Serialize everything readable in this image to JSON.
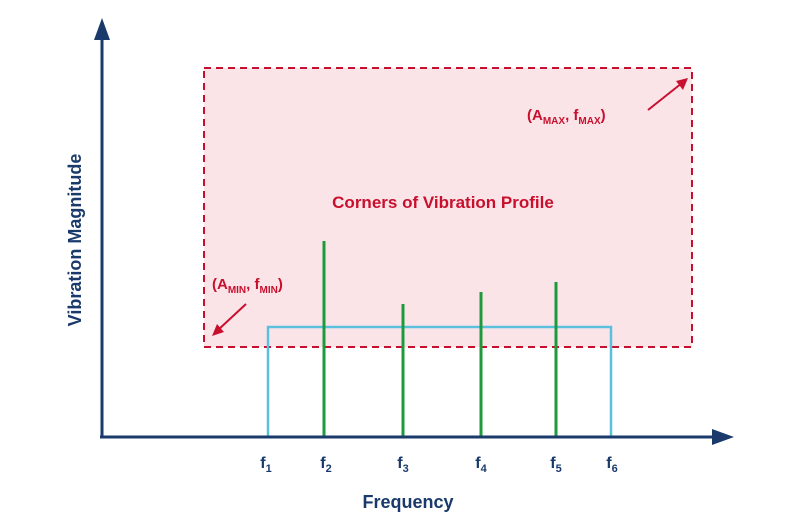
{
  "axes": {
    "x_title": "Frequency",
    "y_title": "Vibration Magnitude"
  },
  "profile_box": {
    "label": "Corners of Vibration Profile"
  },
  "corners": {
    "max": {
      "open": "(A",
      "a_sub": "MAX",
      "mid": ", f",
      "f_sub": "MAX",
      "close": ")"
    },
    "min": {
      "open": "(A",
      "a_sub": "MIN",
      "mid": ", f",
      "f_sub": "MIN",
      "close": ")"
    }
  },
  "frequency_ticks": [
    {
      "base": "f",
      "sub": "1"
    },
    {
      "base": "f",
      "sub": "2"
    },
    {
      "base": "f",
      "sub": "3"
    },
    {
      "base": "f",
      "sub": "4"
    },
    {
      "base": "f",
      "sub": "5"
    },
    {
      "base": "f",
      "sub": "6"
    }
  ],
  "colors": {
    "axis": "#1a3a6b",
    "profile_stroke": "#c8102e",
    "profile_fill": "#fbe4e8",
    "band": "#5bc0de",
    "spike": "#1e9a3c",
    "corner_text": "#c8102e"
  }
}
